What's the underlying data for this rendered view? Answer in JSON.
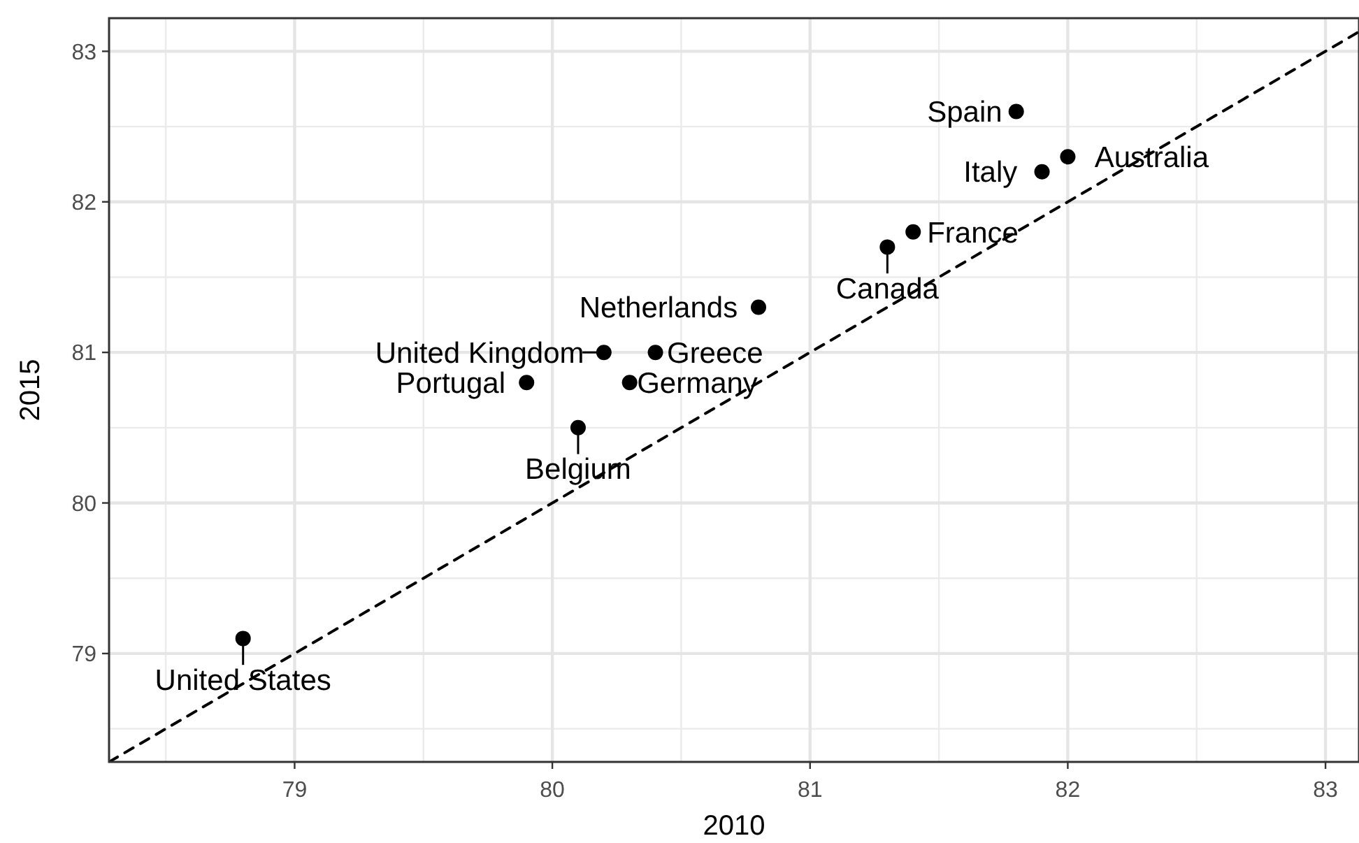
{
  "chart_data": {
    "type": "scatter",
    "xlabel": "2010",
    "ylabel": "2015",
    "xlim": [
      78.28,
      83.13
    ],
    "ylim": [
      78.28,
      83.22
    ],
    "xticks": [
      79,
      80,
      81,
      82,
      83
    ],
    "yticks": [
      79,
      80,
      81,
      82,
      83
    ],
    "grid": true,
    "series": [
      {
        "color": "#000000",
        "marker": "circle",
        "x": [
          78.8,
          79.9,
          80.2,
          80.1,
          80.3,
          80.4,
          80.8,
          81.3,
          81.4,
          81.9,
          82.0,
          81.8
        ],
        "values": [
          79.1,
          80.8,
          81.0,
          80.5,
          80.8,
          81.0,
          81.3,
          81.7,
          81.8,
          82.2,
          82.3,
          82.6
        ]
      },
      {
        "type": "line",
        "color": "#000000",
        "line_style": "dashed",
        "x": [
          78.28,
          83.13
        ],
        "values": [
          78.28,
          83.13
        ]
      }
    ],
    "annotations": [
      {
        "text": "United States",
        "x": 78.8,
        "y": 79.1
      },
      {
        "text": "Portugal",
        "x": 79.9,
        "y": 80.8
      },
      {
        "text": "United Kingdom",
        "x": 80.2,
        "y": 81.0
      },
      {
        "text": "Belgium",
        "x": 80.1,
        "y": 80.5
      },
      {
        "text": "Germany",
        "x": 80.3,
        "y": 80.8
      },
      {
        "text": "Greece",
        "x": 80.4,
        "y": 81.0
      },
      {
        "text": "Netherlands",
        "x": 80.8,
        "y": 81.3
      },
      {
        "text": "Canada",
        "x": 81.3,
        "y": 81.7
      },
      {
        "text": "France",
        "x": 81.4,
        "y": 81.8
      },
      {
        "text": "Italy",
        "x": 81.9,
        "y": 82.2
      },
      {
        "text": "Australia",
        "x": 82.0,
        "y": 82.3
      },
      {
        "text": "Spain",
        "x": 81.8,
        "y": 82.6
      }
    ]
  }
}
